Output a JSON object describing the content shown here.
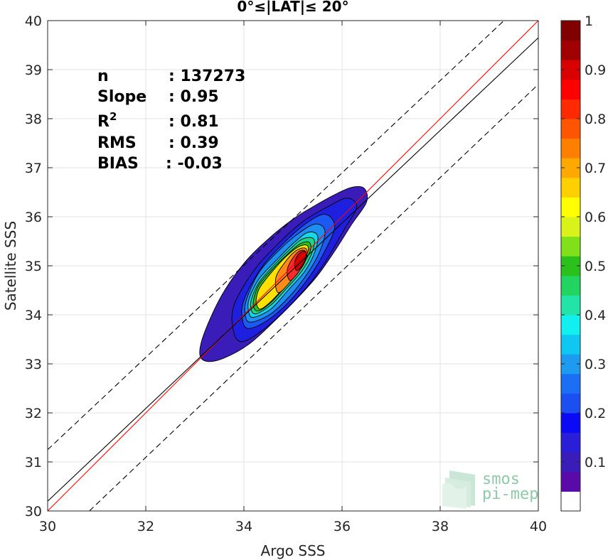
{
  "chart_data": {
    "type": "heatmap",
    "subtype": "density-contour-scatter",
    "title": "0°≤|LAT|≤ 20°",
    "xlabel": "Argo SSS",
    "ylabel": "Satellite SSS",
    "xlim": [
      30,
      40
    ],
    "ylim": [
      30,
      40
    ],
    "xticks": [
      30,
      32,
      34,
      36,
      38,
      40
    ],
    "yticks": [
      30,
      31,
      32,
      33,
      34,
      35,
      36,
      37,
      38,
      39,
      40
    ],
    "grid": true,
    "stats": [
      {
        "label": "n",
        "value": ": 137273"
      },
      {
        "label": "Slope",
        "value": ": 0.95"
      },
      {
        "label": "R",
        "sup": "2",
        "value": ": 0.81"
      },
      {
        "label": "RMS",
        "value": ": 0.39"
      },
      {
        "label": "BIAS",
        "value": ": -0.03"
      }
    ],
    "lines": [
      {
        "name": "1:1",
        "color": "#ff0000",
        "style": "solid",
        "x": [
          30,
          40
        ],
        "y": [
          30,
          40
        ]
      },
      {
        "name": "fit",
        "color": "#000000",
        "style": "solid",
        "x": [
          30,
          40
        ],
        "y": [
          30.2,
          39.65
        ]
      },
      {
        "name": "fit+3sd",
        "color": "#000000",
        "style": "dashed",
        "x": [
          30,
          39.3
        ],
        "y": [
          31.25,
          40
        ]
      },
      {
        "name": "fit-3sd",
        "color": "#000000",
        "style": "dashed",
        "x": [
          30.85,
          40
        ],
        "y": [
          30,
          38.7
        ]
      }
    ],
    "density": {
      "center": [
        35.2,
        35.15
      ],
      "levels": [
        0.05,
        0.1,
        0.2,
        0.3,
        0.4,
        0.5,
        0.6,
        0.7,
        0.8,
        0.9,
        1.0
      ],
      "contours": [
        {
          "level": 0.05,
          "color": "#3a1db8",
          "points": [
            [
              33.25,
              33.05
            ],
            [
              33.6,
              33.12
            ],
            [
              34.1,
              33.4
            ],
            [
              34.6,
              33.85
            ],
            [
              35.1,
              34.35
            ],
            [
              35.5,
              34.8
            ],
            [
              35.85,
              35.3
            ],
            [
              36.2,
              35.85
            ],
            [
              36.5,
              36.3
            ],
            [
              36.45,
              36.58
            ],
            [
              36.2,
              36.6
            ],
            [
              35.85,
              36.45
            ],
            [
              35.4,
              36.2
            ],
            [
              35.0,
              35.95
            ],
            [
              34.5,
              35.55
            ],
            [
              34.0,
              35.05
            ],
            [
              33.55,
              34.4
            ],
            [
              33.2,
              33.65
            ],
            [
              33.1,
              33.2
            ]
          ]
        },
        {
          "level": 0.1,
          "color": "#1f1fe0",
          "points": [
            [
              33.95,
              33.45
            ],
            [
              34.4,
              33.7
            ],
            [
              34.9,
              34.15
            ],
            [
              35.35,
              34.65
            ],
            [
              35.7,
              35.15
            ],
            [
              36.05,
              35.75
            ],
            [
              36.3,
              36.2
            ],
            [
              36.1,
              36.38
            ],
            [
              35.7,
              36.2
            ],
            [
              35.2,
              35.9
            ],
            [
              34.7,
              35.45
            ],
            [
              34.2,
              34.9
            ],
            [
              33.8,
              34.2
            ],
            [
              33.78,
              33.7
            ]
          ]
        },
        {
          "level": 0.2,
          "color": "#1c58f2",
          "points": [
            [
              34.1,
              33.72
            ],
            [
              34.5,
              33.9
            ],
            [
              34.95,
              34.3
            ],
            [
              35.35,
              34.8
            ],
            [
              35.65,
              35.3
            ],
            [
              35.85,
              35.8
            ],
            [
              35.65,
              36.05
            ],
            [
              35.25,
              35.85
            ],
            [
              34.8,
              35.45
            ],
            [
              34.35,
              34.95
            ],
            [
              34.0,
              34.3
            ],
            [
              33.97,
              33.9
            ]
          ]
        },
        {
          "level": 0.3,
          "color": "#1d8ff0",
          "points": [
            [
              34.15,
              33.85
            ],
            [
              34.55,
              34.02
            ],
            [
              34.95,
              34.4
            ],
            [
              35.3,
              34.85
            ],
            [
              35.55,
              35.3
            ],
            [
              35.65,
              35.72
            ],
            [
              35.45,
              35.85
            ],
            [
              35.1,
              35.65
            ],
            [
              34.7,
              35.3
            ],
            [
              34.3,
              34.85
            ],
            [
              34.05,
              34.3
            ],
            [
              34.03,
              33.97
            ]
          ]
        },
        {
          "level": 0.4,
          "color": "#16d6e8",
          "points": [
            [
              34.2,
              33.95
            ],
            [
              34.55,
              34.12
            ],
            [
              34.9,
              34.5
            ],
            [
              35.25,
              34.9
            ],
            [
              35.45,
              35.3
            ],
            [
              35.5,
              35.62
            ],
            [
              35.3,
              35.68
            ],
            [
              35.0,
              35.45
            ],
            [
              34.65,
              35.1
            ],
            [
              34.3,
              34.72
            ],
            [
              34.1,
              34.3
            ],
            [
              34.1,
              34.05
            ]
          ]
        },
        {
          "level": 0.5,
          "color": "#22d48a",
          "points": [
            [
              34.25,
              34.02
            ],
            [
              34.55,
              34.2
            ],
            [
              34.88,
              34.55
            ],
            [
              35.2,
              34.92
            ],
            [
              35.4,
              35.3
            ],
            [
              35.42,
              35.55
            ],
            [
              35.2,
              35.55
            ],
            [
              34.95,
              35.35
            ],
            [
              34.6,
              35.0
            ],
            [
              34.3,
              34.65
            ],
            [
              34.15,
              34.3
            ],
            [
              34.15,
              34.1
            ]
          ]
        },
        {
          "level": 0.6,
          "color": "#28c21e",
          "points": [
            [
              34.3,
              34.08
            ],
            [
              34.55,
              34.25
            ],
            [
              34.85,
              34.58
            ],
            [
              35.15,
              34.95
            ],
            [
              35.35,
              35.3
            ],
            [
              35.33,
              35.48
            ],
            [
              35.15,
              35.45
            ],
            [
              34.9,
              35.25
            ],
            [
              34.55,
              34.9
            ],
            [
              34.3,
              34.6
            ],
            [
              34.2,
              34.32
            ],
            [
              34.2,
              34.15
            ]
          ]
        },
        {
          "level": 0.7,
          "color": "#ffe000",
          "points": [
            [
              34.35,
              34.12
            ],
            [
              34.58,
              34.3
            ],
            [
              34.85,
              34.6
            ],
            [
              35.12,
              34.95
            ],
            [
              35.3,
              35.28
            ],
            [
              35.28,
              35.42
            ],
            [
              35.1,
              35.38
            ],
            [
              34.85,
              35.18
            ],
            [
              34.55,
              34.85
            ],
            [
              34.32,
              34.55
            ],
            [
              34.25,
              34.32
            ],
            [
              34.27,
              34.18
            ]
          ]
        },
        {
          "level": 0.8,
          "color": "#ff8a1a",
          "points": [
            [
              34.7,
              34.45
            ],
            [
              34.95,
              34.68
            ],
            [
              35.15,
              34.95
            ],
            [
              35.28,
              35.2
            ],
            [
              35.25,
              35.36
            ],
            [
              35.05,
              35.3
            ],
            [
              34.82,
              35.05
            ],
            [
              34.65,
              34.75
            ]
          ]
        },
        {
          "level": 0.9,
          "color": "#ff2a2a",
          "points": [
            [
              34.95,
              34.7
            ],
            [
              35.12,
              34.88
            ],
            [
              35.25,
              35.1
            ],
            [
              35.25,
              35.3
            ],
            [
              35.1,
              35.28
            ],
            [
              34.93,
              35.05
            ],
            [
              34.88,
              34.85
            ]
          ]
        },
        {
          "level": 1.0,
          "color": "#c80000",
          "points": [
            [
              35.08,
              34.9
            ],
            [
              35.2,
              35.02
            ],
            [
              35.27,
              35.2
            ],
            [
              35.22,
              35.3
            ],
            [
              35.1,
              35.22
            ],
            [
              35.03,
              35.05
            ]
          ]
        }
      ]
    },
    "colorbar": {
      "range": [
        0,
        1
      ],
      "ticks": [
        "0.1",
        "0.2",
        "0.3",
        "0.4",
        "0.5",
        "0.6",
        "0.7",
        "0.8",
        "0.9",
        "1"
      ],
      "colors": [
        "#ffffff",
        "#5a0aa8",
        "#3a1db8",
        "#2a1ed8",
        "#0a0af5",
        "#1c4ff2",
        "#1a6ff5",
        "#1c9bf0",
        "#0fc8f2",
        "#12efef",
        "#22e3a8",
        "#22d460",
        "#2ac21a",
        "#80e01a",
        "#d8f21a",
        "#ffff00",
        "#ffd000",
        "#ffa800",
        "#ff8000",
        "#ff5500",
        "#ff2a00",
        "#ff0000",
        "#d80000",
        "#a00000",
        "#800000"
      ]
    },
    "logo": {
      "line1": "smos",
      "line2": "pi-mep"
    }
  }
}
